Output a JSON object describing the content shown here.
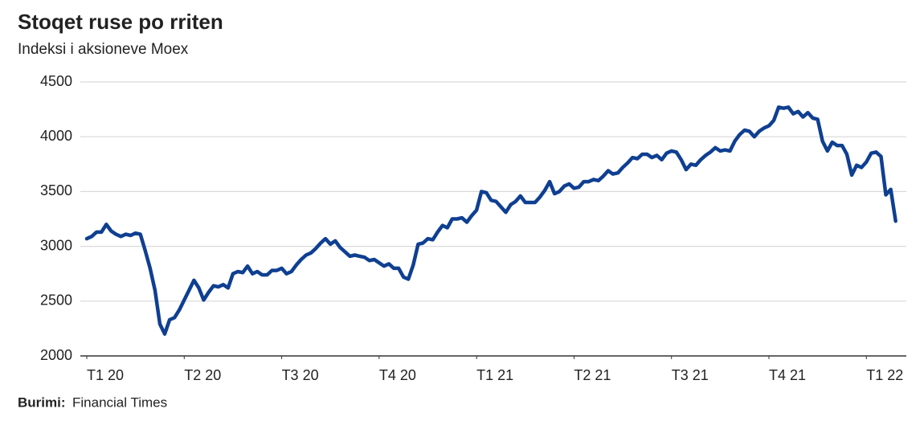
{
  "chart_data": {
    "type": "line",
    "title": "Stoqet ruse po rriten",
    "subtitle": "Indeksi i aksioneve Moex",
    "source_label": "Burimi:",
    "source": "Financial Times",
    "xlim": [
      0,
      8.41
    ],
    "xticks": [
      {
        "value": 0,
        "label": "T1 20"
      },
      {
        "value": 1,
        "label": "T2 20"
      },
      {
        "value": 2,
        "label": "T3 20"
      },
      {
        "value": 3,
        "label": "T4 20"
      },
      {
        "value": 4,
        "label": "T1 21"
      },
      {
        "value": 5,
        "label": "T2 21"
      },
      {
        "value": 6,
        "label": "T3 21"
      },
      {
        "value": 7,
        "label": "T4 21"
      },
      {
        "value": 8,
        "label": "T1 22"
      }
    ],
    "ylim": [
      2000,
      4500
    ],
    "yticks": [
      2000,
      2500,
      3000,
      3500,
      4000,
      4500
    ],
    "grid": true,
    "x": [
      0,
      0.05,
      0.1,
      0.15,
      0.2,
      0.25,
      0.3,
      0.35,
      0.4,
      0.45,
      0.5,
      0.55,
      0.6,
      0.65,
      0.7,
      0.75,
      0.8,
      0.85,
      0.9,
      0.95,
      1,
      1.05,
      1.1,
      1.15,
      1.2,
      1.25,
      1.3,
      1.35,
      1.4,
      1.45,
      1.5,
      1.55,
      1.6,
      1.65,
      1.7,
      1.75,
      1.8,
      1.85,
      1.9,
      1.95,
      2,
      2.05,
      2.1,
      2.15,
      2.2,
      2.25,
      2.3,
      2.35,
      2.4,
      2.45,
      2.5,
      2.55,
      2.6,
      2.65,
      2.7,
      2.75,
      2.8,
      2.85,
      2.9,
      2.95,
      3,
      3.05,
      3.1,
      3.15,
      3.2,
      3.25,
      3.3,
      3.35,
      3.4,
      3.45,
      3.5,
      3.55,
      3.6,
      3.65,
      3.7,
      3.75,
      3.8,
      3.85,
      3.9,
      3.95,
      4,
      4.05,
      4.1,
      4.15,
      4.2,
      4.25,
      4.3,
      4.35,
      4.4,
      4.45,
      4.5,
      4.55,
      4.6,
      4.65,
      4.7,
      4.75,
      4.8,
      4.85,
      4.9,
      4.95,
      5,
      5.05,
      5.1,
      5.15,
      5.2,
      5.25,
      5.3,
      5.35,
      5.4,
      5.45,
      5.5,
      5.55,
      5.6,
      5.65,
      5.7,
      5.75,
      5.8,
      5.85,
      5.9,
      5.95,
      6,
      6.05,
      6.1,
      6.15,
      6.2,
      6.25,
      6.3,
      6.35,
      6.4,
      6.45,
      6.5,
      6.55,
      6.6,
      6.65,
      6.7,
      6.75,
      6.8,
      6.85,
      6.9,
      6.95,
      7,
      7.05,
      7.1,
      7.15,
      7.2,
      7.25,
      7.3,
      7.35,
      7.4,
      7.45,
      7.5,
      7.55,
      7.6,
      7.65,
      7.7,
      7.75,
      7.8,
      7.85,
      7.9,
      7.95,
      8,
      8.05,
      8.1,
      8.15,
      8.2,
      8.25,
      8.3
    ],
    "series": [
      {
        "name": "Moex",
        "color": "#0f3f91",
        "values": [
          3070,
          3090,
          3130,
          3130,
          3200,
          3140,
          3110,
          3090,
          3110,
          3100,
          3120,
          3110,
          2960,
          2800,
          2600,
          2290,
          2200,
          2330,
          2350,
          2420,
          2510,
          2600,
          2690,
          2620,
          2510,
          2580,
          2640,
          2630,
          2650,
          2620,
          2750,
          2770,
          2760,
          2820,
          2750,
          2770,
          2740,
          2740,
          2780,
          2780,
          2800,
          2750,
          2770,
          2830,
          2880,
          2920,
          2940,
          2980,
          3030,
          3070,
          3020,
          3050,
          2990,
          2950,
          2910,
          2920,
          2910,
          2900,
          2870,
          2880,
          2850,
          2820,
          2840,
          2800,
          2800,
          2720,
          2700,
          2830,
          3020,
          3030,
          3070,
          3060,
          3130,
          3190,
          3170,
          3250,
          3250,
          3260,
          3220,
          3280,
          3330,
          3500,
          3490,
          3420,
          3410,
          3360,
          3310,
          3380,
          3410,
          3460,
          3400,
          3400,
          3400,
          3450,
          3510,
          3590,
          3480,
          3500,
          3550,
          3570,
          3530,
          3540,
          3590,
          3590,
          3610,
          3600,
          3640,
          3690,
          3660,
          3670,
          3720,
          3760,
          3810,
          3800,
          3840,
          3840,
          3810,
          3830,
          3790,
          3850,
          3870,
          3860,
          3790,
          3700,
          3750,
          3740,
          3790,
          3830,
          3860,
          3900,
          3870,
          3880,
          3870,
          3960,
          4020,
          4060,
          4050,
          4000,
          4050,
          4080,
          4100,
          4150,
          4270,
          4260,
          4270,
          4210,
          4230,
          4180,
          4220,
          4170,
          4160,
          3960,
          3870,
          3950,
          3920,
          3920,
          3840,
          3650,
          3740,
          3720,
          3770,
          3850,
          3860,
          3820,
          3470,
          3520,
          3230
        ]
      }
    ]
  }
}
